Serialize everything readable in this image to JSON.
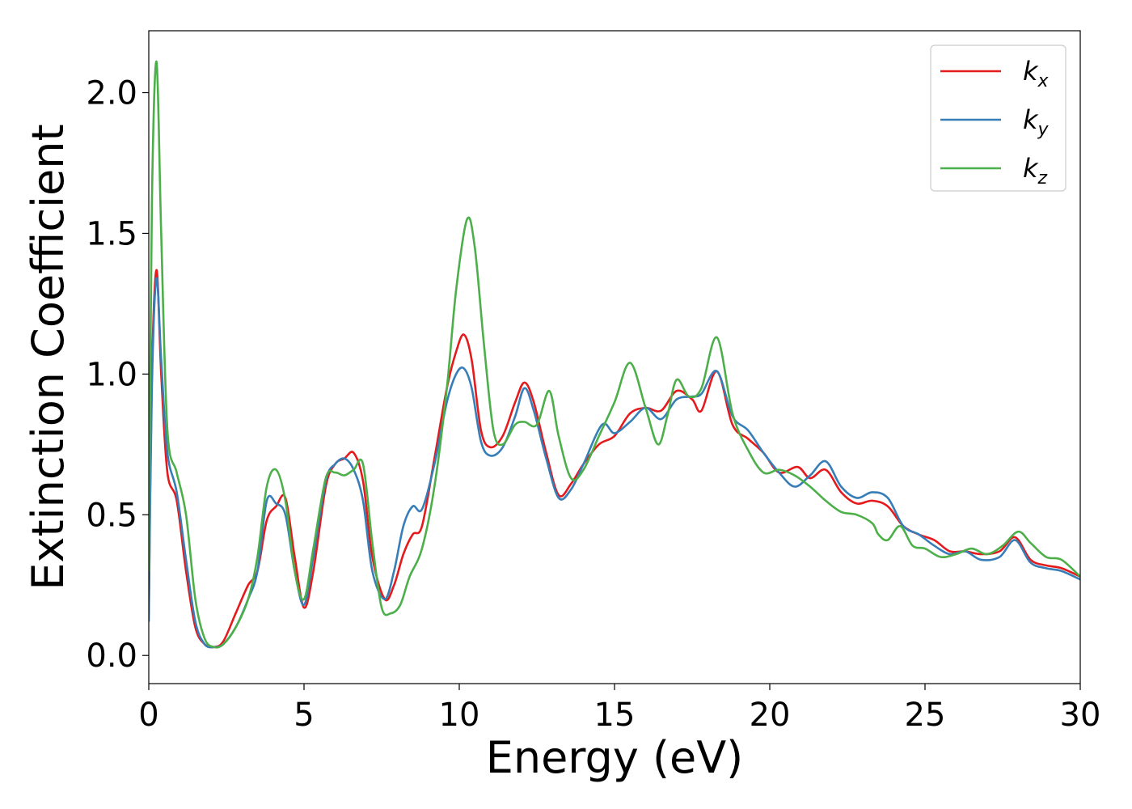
{
  "chart_data": {
    "type": "line",
    "title": "",
    "xlabel": "Energy (eV)",
    "ylabel": "Extinction Coefficient",
    "xlim": [
      0,
      30
    ],
    "ylim": [
      -0.1,
      2.22
    ],
    "xticks": [
      0,
      5,
      10,
      15,
      20,
      25,
      30
    ],
    "xtick_labels": [
      "0",
      "5",
      "10",
      "15",
      "20",
      "25",
      "30"
    ],
    "yticks": [
      0.0,
      0.5,
      1.0,
      1.5,
      2.0
    ],
    "ytick_labels": [
      "0.0",
      "0.5",
      "1.0",
      "1.5",
      "2.0"
    ],
    "grid": false,
    "legend_position": "top-right",
    "series": [
      {
        "name": "k_x",
        "label_main": "k",
        "label_sub": "x",
        "color": "#e41a1c",
        "x": [
          0,
          0.1,
          0.25,
          0.4,
          0.6,
          0.9,
          1.2,
          1.5,
          1.8,
          2.1,
          2.4,
          2.8,
          3.2,
          3.5,
          3.8,
          4.1,
          4.4,
          4.7,
          5.0,
          5.3,
          5.7,
          6.0,
          6.3,
          6.6,
          6.9,
          7.2,
          7.6,
          7.9,
          8.2,
          8.5,
          8.8,
          9.2,
          9.6,
          9.9,
          10.15,
          10.4,
          10.7,
          11.0,
          11.4,
          11.8,
          12.1,
          12.4,
          12.8,
          13.2,
          13.6,
          14.0,
          14.5,
          15.0,
          15.5,
          16.0,
          16.5,
          17.0,
          17.5,
          17.8,
          18.3,
          18.8,
          19.3,
          19.8,
          20.3,
          20.9,
          21.3,
          21.8,
          22.3,
          22.8,
          23.3,
          23.8,
          24.3,
          24.8,
          25.3,
          25.8,
          26.3,
          26.8,
          27.4,
          27.9,
          28.4,
          28.9,
          29.4,
          30.0
        ],
        "y": [
          0.15,
          1.0,
          1.37,
          1.0,
          0.65,
          0.55,
          0.3,
          0.1,
          0.04,
          0.03,
          0.05,
          0.15,
          0.25,
          0.3,
          0.48,
          0.53,
          0.56,
          0.35,
          0.17,
          0.3,
          0.6,
          0.68,
          0.7,
          0.72,
          0.62,
          0.35,
          0.2,
          0.25,
          0.36,
          0.43,
          0.46,
          0.7,
          0.95,
          1.08,
          1.14,
          1.05,
          0.8,
          0.74,
          0.78,
          0.9,
          0.97,
          0.9,
          0.72,
          0.57,
          0.61,
          0.68,
          0.75,
          0.78,
          0.86,
          0.88,
          0.87,
          0.94,
          0.91,
          0.87,
          1.01,
          0.82,
          0.77,
          0.72,
          0.65,
          0.67,
          0.63,
          0.66,
          0.58,
          0.54,
          0.55,
          0.53,
          0.46,
          0.43,
          0.41,
          0.37,
          0.37,
          0.36,
          0.37,
          0.42,
          0.34,
          0.32,
          0.31,
          0.28
        ]
      },
      {
        "name": "k_y",
        "label_main": "k",
        "label_sub": "y",
        "color": "#377eb8",
        "x": [
          0,
          0.1,
          0.25,
          0.4,
          0.6,
          0.9,
          1.2,
          1.5,
          1.8,
          2.1,
          2.4,
          2.8,
          3.2,
          3.5,
          3.8,
          4.1,
          4.4,
          4.7,
          5.0,
          5.3,
          5.7,
          6.0,
          6.3,
          6.6,
          6.9,
          7.2,
          7.6,
          7.9,
          8.2,
          8.5,
          8.8,
          9.2,
          9.6,
          9.9,
          10.15,
          10.4,
          10.7,
          11.0,
          11.4,
          11.8,
          12.1,
          12.4,
          12.8,
          13.2,
          13.6,
          14.0,
          14.6,
          15.0,
          15.5,
          16.0,
          16.5,
          17.0,
          17.5,
          17.8,
          18.3,
          18.8,
          19.3,
          19.8,
          20.3,
          20.8,
          21.3,
          21.8,
          22.3,
          22.8,
          23.3,
          23.8,
          24.3,
          24.8,
          25.3,
          25.8,
          26.3,
          26.8,
          27.4,
          27.9,
          28.4,
          28.9,
          29.4,
          30.0
        ],
        "y": [
          0.12,
          0.95,
          1.34,
          1.05,
          0.72,
          0.58,
          0.34,
          0.12,
          0.04,
          0.03,
          0.04,
          0.1,
          0.2,
          0.3,
          0.55,
          0.54,
          0.5,
          0.3,
          0.18,
          0.35,
          0.62,
          0.68,
          0.7,
          0.66,
          0.55,
          0.3,
          0.2,
          0.3,
          0.46,
          0.53,
          0.52,
          0.68,
          0.9,
          1.0,
          1.02,
          0.95,
          0.76,
          0.71,
          0.74,
          0.85,
          0.95,
          0.87,
          0.7,
          0.56,
          0.59,
          0.68,
          0.82,
          0.79,
          0.83,
          0.88,
          0.84,
          0.91,
          0.92,
          0.93,
          1.01,
          0.85,
          0.8,
          0.72,
          0.65,
          0.6,
          0.64,
          0.69,
          0.6,
          0.56,
          0.58,
          0.56,
          0.46,
          0.43,
          0.39,
          0.36,
          0.37,
          0.34,
          0.35,
          0.41,
          0.33,
          0.31,
          0.3,
          0.27
        ]
      },
      {
        "name": "k_z",
        "label_main": "k",
        "label_sub": "z",
        "color": "#4daf4a",
        "x": [
          0,
          0.1,
          0.25,
          0.4,
          0.6,
          0.9,
          1.2,
          1.5,
          1.8,
          2.1,
          2.4,
          2.8,
          3.2,
          3.5,
          3.8,
          4.1,
          4.4,
          4.7,
          5.0,
          5.3,
          5.7,
          6.0,
          6.3,
          6.6,
          6.9,
          7.2,
          7.5,
          7.8,
          8.1,
          8.4,
          8.8,
          9.2,
          9.6,
          9.9,
          10.25,
          10.5,
          10.8,
          11.1,
          11.4,
          11.8,
          12.1,
          12.5,
          12.9,
          13.2,
          13.6,
          14.0,
          14.5,
          15.0,
          15.5,
          16.0,
          16.4,
          16.7,
          17.0,
          17.4,
          17.8,
          18.3,
          18.8,
          19.3,
          19.8,
          20.3,
          20.8,
          21.3,
          21.8,
          22.3,
          22.8,
          23.3,
          23.5,
          23.8,
          24.2,
          24.6,
          25.0,
          25.5,
          26.0,
          26.5,
          27.0,
          27.5,
          28.0,
          28.4,
          28.9,
          29.4,
          30.0
        ],
        "y": [
          0.3,
          1.6,
          2.11,
          1.5,
          0.8,
          0.65,
          0.5,
          0.2,
          0.06,
          0.03,
          0.04,
          0.1,
          0.2,
          0.35,
          0.6,
          0.66,
          0.55,
          0.3,
          0.2,
          0.38,
          0.63,
          0.65,
          0.64,
          0.66,
          0.68,
          0.4,
          0.17,
          0.15,
          0.18,
          0.28,
          0.38,
          0.6,
          0.95,
          1.3,
          1.55,
          1.45,
          1.1,
          0.8,
          0.75,
          0.82,
          0.83,
          0.82,
          0.94,
          0.78,
          0.63,
          0.66,
          0.78,
          0.9,
          1.04,
          0.88,
          0.75,
          0.85,
          0.98,
          0.92,
          0.95,
          1.13,
          0.86,
          0.73,
          0.65,
          0.66,
          0.64,
          0.6,
          0.55,
          0.51,
          0.5,
          0.47,
          0.43,
          0.41,
          0.46,
          0.39,
          0.38,
          0.35,
          0.36,
          0.38,
          0.36,
          0.39,
          0.44,
          0.4,
          0.35,
          0.34,
          0.28
        ]
      }
    ]
  }
}
